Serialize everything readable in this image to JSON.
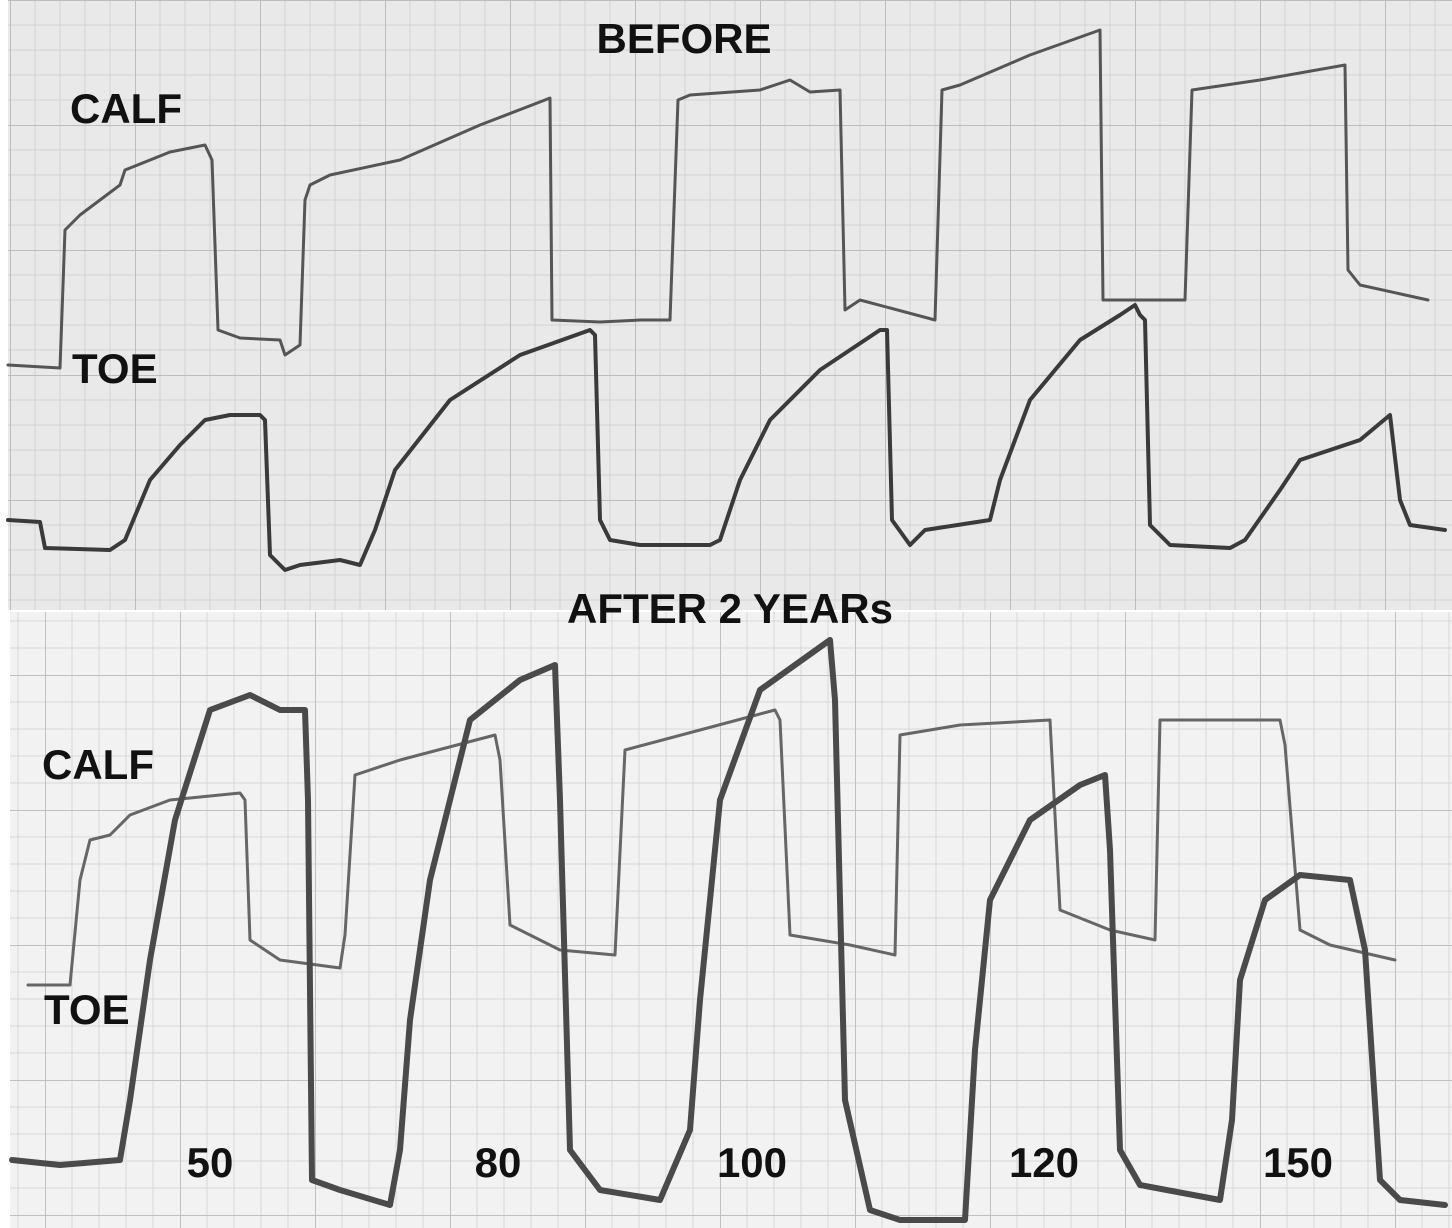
{
  "before": {
    "title": "BEFORE",
    "calf_label": "CALF",
    "toe_label": "TOE"
  },
  "after": {
    "title": "AFTER 2 YEARs",
    "calf_label": "CALF",
    "toe_label": "TOE",
    "pressure_labels": [
      "50",
      "80",
      "100",
      "120",
      "150"
    ]
  }
}
